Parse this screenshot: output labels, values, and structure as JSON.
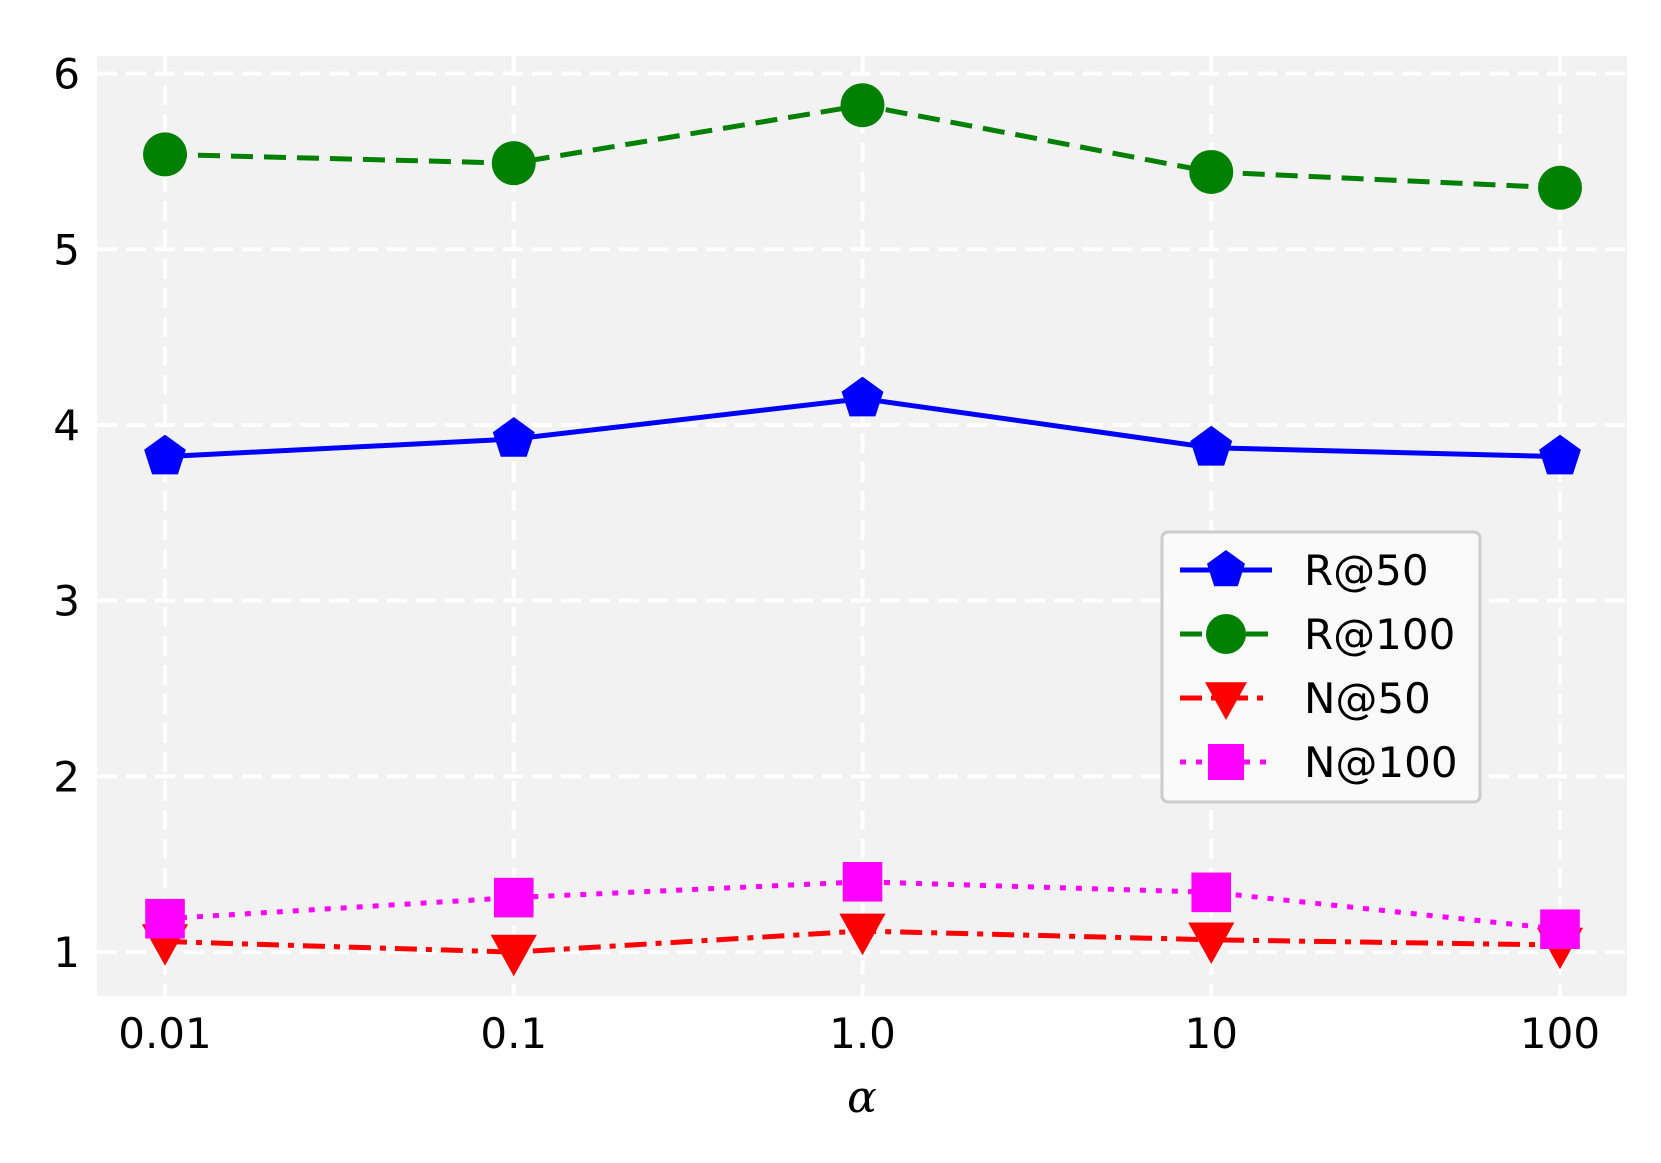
{
  "chart_data": {
    "type": "line",
    "title": "",
    "xlabel": "α",
    "ylabel": "",
    "categories": [
      "0.01",
      "0.1",
      "1.0",
      "10",
      "100"
    ],
    "ylim": [
      0.75,
      6.1
    ],
    "yticks": [
      "1",
      "2",
      "3",
      "4",
      "5",
      "6"
    ],
    "grid": true,
    "background": "#f2f2f2",
    "legend_position": "center-right",
    "series": [
      {
        "name": "R@50",
        "values": [
          3.82,
          3.92,
          4.15,
          3.87,
          3.82
        ],
        "color": "#0000ff",
        "linestyle": "solid",
        "marker": "pentagon"
      },
      {
        "name": "R@100",
        "values": [
          5.54,
          5.49,
          5.82,
          5.44,
          5.35
        ],
        "color": "#008000",
        "linestyle": "dashed",
        "marker": "circle"
      },
      {
        "name": "N@50",
        "values": [
          1.06,
          1.0,
          1.12,
          1.07,
          1.04
        ],
        "color": "#ff0000",
        "linestyle": "dashdot",
        "marker": "triangle-down"
      },
      {
        "name": "N@100",
        "values": [
          1.19,
          1.31,
          1.4,
          1.34,
          1.13
        ],
        "color": "#ff00ff",
        "linestyle": "dotted",
        "marker": "square"
      }
    ]
  }
}
